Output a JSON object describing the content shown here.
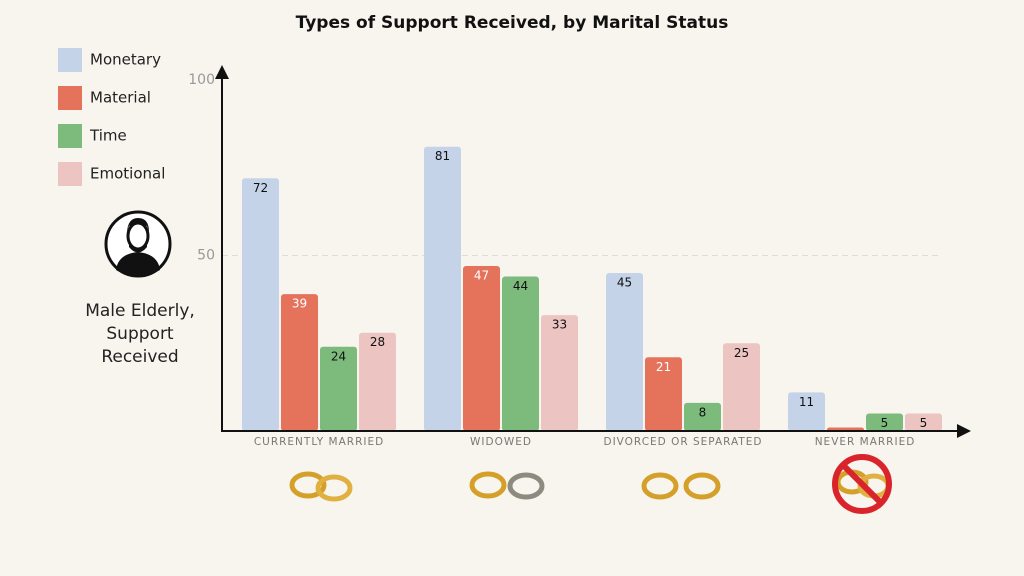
{
  "chart_data": {
    "type": "bar",
    "title": "Types of Support Received, by Marital Status",
    "annotation": "Male Elderly, Support Received",
    "categories": [
      "CURRENTLY MARRIED",
      "WIDOWED",
      "DIVORCED OR SEPARATED",
      "NEVER MARRIED"
    ],
    "series": [
      {
        "name": "Monetary",
        "color": "#c5d3e8",
        "values": [
          72,
          81,
          45,
          11
        ]
      },
      {
        "name": "Material",
        "color": "#e5735c",
        "values": [
          39,
          47,
          21,
          1
        ]
      },
      {
        "name": "Time",
        "color": "#7dbb7d",
        "values": [
          24,
          44,
          8,
          5
        ]
      },
      {
        "name": "Emotional",
        "color": "#ecc4c2",
        "values": [
          28,
          33,
          25,
          5
        ]
      }
    ],
    "ylim": [
      0,
      100
    ],
    "yticks": [
      50,
      100
    ],
    "grid": true
  }
}
